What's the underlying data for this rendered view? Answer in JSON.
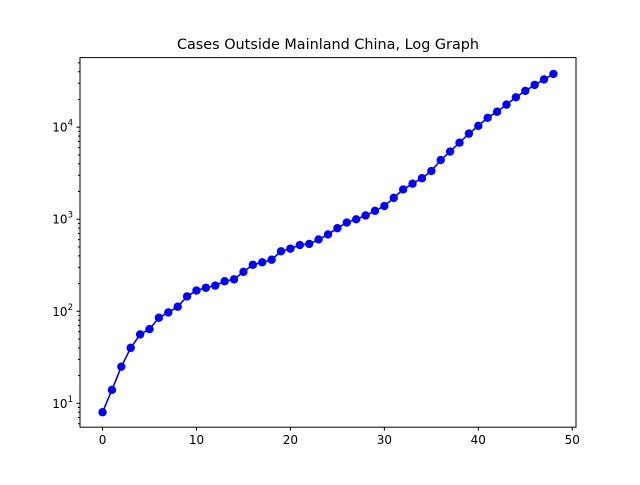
{
  "chart_data": {
    "type": "line",
    "title": "Cases Outside Mainland China, Log Graph",
    "xlabel": "",
    "ylabel": "",
    "xlim": [
      -2.4,
      50.4
    ],
    "ylim": [
      5.5,
      57000
    ],
    "yscale": "log",
    "grid": false,
    "x_ticks": [
      0,
      10,
      20,
      30,
      40,
      50
    ],
    "x_tick_labels": [
      "0",
      "10",
      "20",
      "30",
      "40",
      "50"
    ],
    "y_ticks": [
      10,
      100,
      1000,
      10000
    ],
    "y_tick_labels": [
      {
        "base": "10",
        "exp": "1"
      },
      {
        "base": "10",
        "exp": "2"
      },
      {
        "base": "10",
        "exp": "3"
      },
      {
        "base": "10",
        "exp": "4"
      }
    ],
    "series": [
      {
        "color": "#0000ff",
        "marker": "circle",
        "x": [
          0,
          1,
          2,
          3,
          4,
          5,
          6,
          7,
          8,
          9,
          10,
          11,
          12,
          13,
          14,
          15,
          16,
          17,
          18,
          19,
          20,
          21,
          22,
          23,
          24,
          25,
          26,
          27,
          28,
          29,
          30,
          31,
          32,
          33,
          34,
          35,
          36,
          37,
          38,
          39,
          40,
          41,
          42,
          43,
          44,
          45,
          46,
          47,
          48
        ],
        "values": [
          8,
          14,
          25,
          40,
          56,
          64,
          85,
          97,
          112,
          145,
          168,
          180,
          190,
          212,
          222,
          268,
          320,
          340,
          363,
          448,
          479,
          524,
          539,
          603,
          683,
          799,
          919,
          998,
          1098,
          1233,
          1389,
          1706,
          2106,
          2431,
          2788,
          3338,
          4394,
          5434,
          6783,
          8512,
          10330,
          12645,
          14716,
          17589,
          21127,
          24757,
          28794,
          33044,
          37888
        ]
      }
    ]
  }
}
